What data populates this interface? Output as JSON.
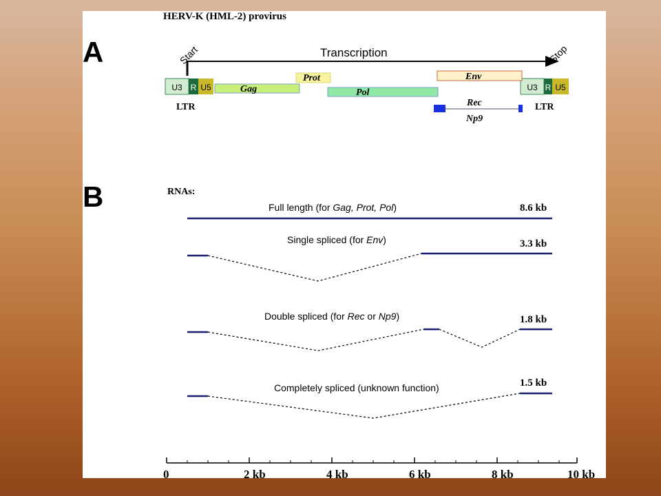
{
  "title": "HERV-K (HML-2) provirus",
  "panels": {
    "a_label": "A",
    "b_label": "B"
  },
  "transcription": {
    "label": "Transcription",
    "start": "Start",
    "stop": "Stop"
  },
  "ltr": {
    "label": "LTR",
    "u3": "U3",
    "r": "R",
    "u5": "U5"
  },
  "genes": {
    "gag": "Gag",
    "prot": "Prot",
    "pol": "Pol",
    "env": "Env",
    "rec": "Rec",
    "np9": "Np9"
  },
  "rnas_label": "RNAs:",
  "rnas": [
    {
      "pre": "Full length (for ",
      "genes": "Gag, Prot, Pol",
      "post": ")",
      "size": "8.6 kb"
    },
    {
      "pre": "Single spliced (for ",
      "genes": "Env",
      "post": ")",
      "size": "3.3 kb"
    },
    {
      "pre": "Double spliced (for ",
      "genes": "Rec",
      "mid": " or ",
      "genes2": "Np9",
      "post": ")",
      "size": "1.8 kb"
    },
    {
      "pre": "Completely spliced (unknown function)",
      "size": "1.5 kb"
    }
  ],
  "axis": {
    "ticks": [
      "0",
      "2 kb",
      "4 kb",
      "6 kb",
      "8 kb",
      "10 kb"
    ]
  },
  "colors": {
    "u3": "#d2ecd2",
    "r": "#1d6b3a",
    "u5": "#c9b82a",
    "gag": "#c8ef7a",
    "prot": "#f5f3a0",
    "pol": "#8fe8a6",
    "env": "#fcf1c8",
    "rec_exon": "#1a2fe0",
    "rna_line": "#1a1f6e"
  }
}
